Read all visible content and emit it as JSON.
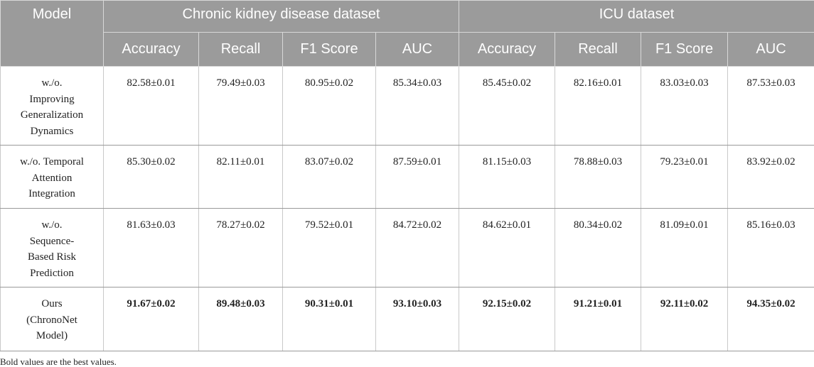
{
  "table": {
    "model_header": "Model",
    "groups": [
      "Chronic kidney disease dataset",
      "ICU dataset"
    ],
    "metrics": [
      "Accuracy",
      "Recall",
      "F1 Score",
      "AUC",
      "Accuracy",
      "Recall",
      "F1 Score",
      "AUC"
    ],
    "rows": [
      {
        "model": "w./o. Improving Generalization Dynamics",
        "model_lines": [
          "w./o.",
          "Improving",
          "Generalization",
          "Dynamics"
        ],
        "values": [
          "82.58±0.01",
          "79.49±0.03",
          "80.95±0.02",
          "85.34±0.03",
          "85.45±0.02",
          "82.16±0.01",
          "83.03±0.03",
          "87.53±0.03"
        ]
      },
      {
        "model": "w./o. Temporal Attention Integration",
        "model_lines": [
          "w./o. Temporal",
          "Attention",
          "Integration"
        ],
        "values": [
          "85.30±0.02",
          "82.11±0.01",
          "83.07±0.02",
          "87.59±0.01",
          "81.15±0.03",
          "78.88±0.03",
          "79.23±0.01",
          "83.92±0.02"
        ]
      },
      {
        "model": "w./o. Sequence-Based Risk Prediction",
        "model_lines": [
          "w./o.",
          "Sequence-",
          "Based Risk",
          "Prediction"
        ],
        "values": [
          "81.63±0.03",
          "78.27±0.02",
          "79.52±0.01",
          "84.72±0.02",
          "84.62±0.01",
          "80.34±0.02",
          "81.09±0.01",
          "85.16±0.03"
        ]
      },
      {
        "model": "Ours (ChronoNet Model)",
        "model_lines": [
          "Ours",
          "(ChronoNet",
          "Model)"
        ],
        "values": [
          "91.67±0.02",
          "89.48±0.03",
          "90.31±0.01",
          "93.10±0.03",
          "92.15±0.02",
          "91.21±0.01",
          "92.11±0.02",
          "94.35±0.02"
        ],
        "bold": true
      }
    ]
  },
  "footnote": "Bold values are the best values.",
  "colors": {
    "header_background": "#9b9b9b",
    "header_text": "#ffffff",
    "body_text": "#222222"
  }
}
